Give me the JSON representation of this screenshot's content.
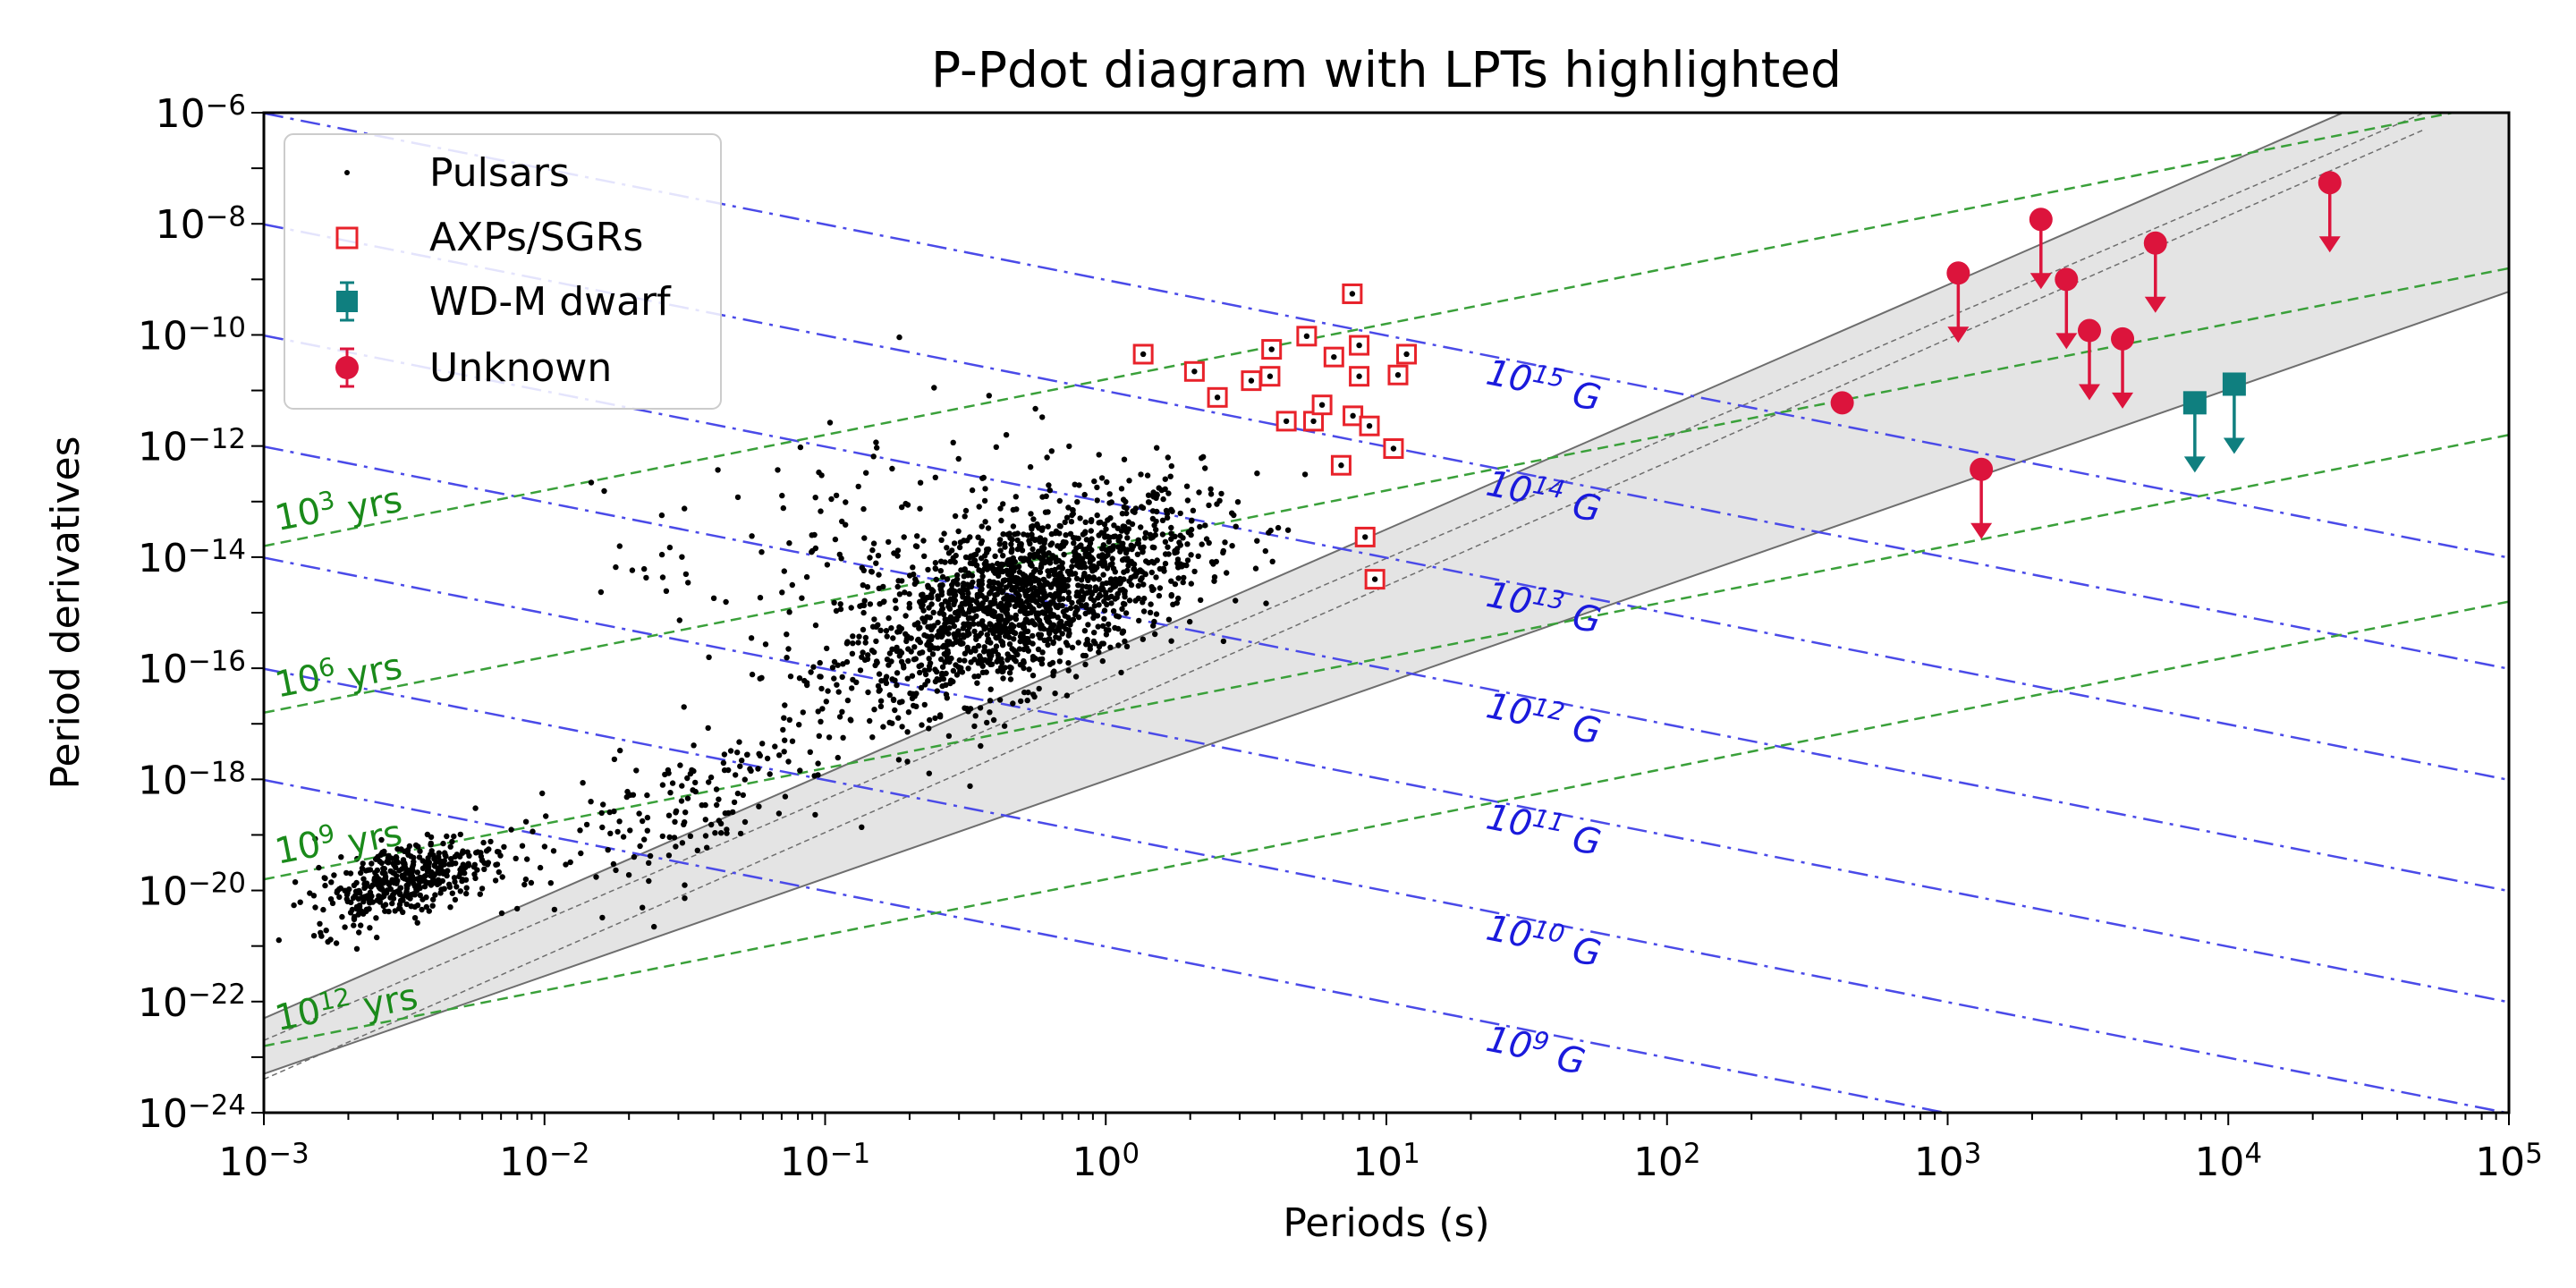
{
  "chart_data": {
    "type": "scatter",
    "title": "P-Pdot diagram with LPTs highlighted",
    "xlabel": "Periods (s)",
    "ylabel": "Period derivatives",
    "xscale": "log",
    "yscale": "log",
    "xlim": [
      0.001,
      100000
    ],
    "ylim": [
      1e-24,
      1e-06
    ],
    "x_ticks": [
      {
        "value": 0.001,
        "base": "10",
        "exp": "−3"
      },
      {
        "value": 0.01,
        "base": "10",
        "exp": "−2"
      },
      {
        "value": 0.1,
        "base": "10",
        "exp": "−1"
      },
      {
        "value": 1,
        "base": "10",
        "exp": "0"
      },
      {
        "value": 10,
        "base": "10",
        "exp": "1"
      },
      {
        "value": 100,
        "base": "10",
        "exp": "2"
      },
      {
        "value": 1000,
        "base": "10",
        "exp": "3"
      },
      {
        "value": 10000,
        "base": "10",
        "exp": "4"
      },
      {
        "value": 100000,
        "base": "10",
        "exp": "5"
      }
    ],
    "y_ticks": [
      {
        "value": 1e-24,
        "base": "10",
        "exp": "−24"
      },
      {
        "value": 1e-22,
        "base": "10",
        "exp": "−22"
      },
      {
        "value": 1e-20,
        "base": "10",
        "exp": "−20"
      },
      {
        "value": 1e-18,
        "base": "10",
        "exp": "−18"
      },
      {
        "value": 1e-16,
        "base": "10",
        "exp": "−16"
      },
      {
        "value": 1e-14,
        "base": "10",
        "exp": "−14"
      },
      {
        "value": 1e-12,
        "base": "10",
        "exp": "−12"
      },
      {
        "value": 1e-10,
        "base": "10",
        "exp": "−10"
      },
      {
        "value": 1e-08,
        "base": "10",
        "exp": "−8"
      },
      {
        "value": 1e-06,
        "base": "10",
        "exp": "−6"
      }
    ],
    "legend": {
      "placement": "top-left",
      "entries": [
        "Pulsars",
        "AXPs/SGRs",
        "WD-M dwarf",
        "Unknown"
      ]
    },
    "colors": {
      "pulsars": "#000000",
      "axp": "#e8222a",
      "wd": "#0f7f7f",
      "unknown": "#dc143c",
      "b_lines": "#4a4ae8",
      "b_text": "#1a1adc",
      "age_lines": "#3aa03a",
      "age_text": "#1a8a1a",
      "death_fill": "#e4e4e4",
      "death_line": "#6e6e6e"
    },
    "b_field_lines": [
      {
        "base": "10",
        "exp": "9",
        "unit": "G",
        "B": 1000000000.0
      },
      {
        "base": "10",
        "exp": "10",
        "unit": "G",
        "B": 10000000000.0
      },
      {
        "base": "10",
        "exp": "11",
        "unit": "G",
        "B": 100000000000.0
      },
      {
        "base": "10",
        "exp": "12",
        "unit": "G",
        "B": 1000000000000.0
      },
      {
        "base": "10",
        "exp": "13",
        "unit": "G",
        "B": 10000000000000.0
      },
      {
        "base": "10",
        "exp": "14",
        "unit": "G",
        "B": 100000000000000.0
      },
      {
        "base": "10",
        "exp": "15",
        "unit": "G",
        "B": 1000000000000000.0
      }
    ],
    "b_field_constant": 3.2e+19,
    "age_lines": [
      {
        "base": "10",
        "exp": "3",
        "unit": "yrs",
        "age_yr": 1000.0
      },
      {
        "base": "10",
        "exp": "6",
        "unit": "yrs",
        "age_yr": 1000000.0
      },
      {
        "base": "10",
        "exp": "9",
        "unit": "yrs",
        "age_yr": 1000000000.0
      },
      {
        "base": "10",
        "exp": "12",
        "unit": "yrs",
        "age_yr": 1000000000000.0
      }
    ],
    "death_region": {
      "lower": {
        "x": [
          0.001,
          100000
        ],
        "y": [
          5e-24,
          6e-10
        ]
      },
      "upper": {
        "x": [
          0.001,
          100000
        ],
        "y": [
          5e-23,
          2e-05
        ]
      },
      "dashed": [
        {
          "x": [
            0.001,
            50000
          ],
          "y": [
            2e-23,
            1e-06
          ]
        },
        {
          "x": [
            0.001,
            50000
          ],
          "y": [
            4e-24,
            5e-07
          ]
        }
      ]
    },
    "series": [
      {
        "name": "AXPs/SGRs",
        "marker": "open-square",
        "points": [
          {
            "x": 1.36,
            "y": 4.5e-11
          },
          {
            "x": 2.07,
            "y": 2.2e-11
          },
          {
            "x": 2.5,
            "y": 7.5e-12
          },
          {
            "x": 3.3,
            "y": 1.5e-11
          },
          {
            "x": 3.85,
            "y": 1.8e-11
          },
          {
            "x": 3.9,
            "y": 5.5e-11
          },
          {
            "x": 4.4,
            "y": 2.8e-12
          },
          {
            "x": 5.2,
            "y": 9.5e-11
          },
          {
            "x": 5.5,
            "y": 2.8e-12
          },
          {
            "x": 5.9,
            "y": 5.5e-12
          },
          {
            "x": 6.5,
            "y": 4e-11
          },
          {
            "x": 6.9,
            "y": 4.5e-13
          },
          {
            "x": 7.56,
            "y": 5.5e-10
          },
          {
            "x": 7.6,
            "y": 3.5e-12
          },
          {
            "x": 8.0,
            "y": 6.5e-11
          },
          {
            "x": 8.0,
            "y": 1.8e-11
          },
          {
            "x": 8.7,
            "y": 2.3e-12
          },
          {
            "x": 8.4,
            "y": 2.3e-14
          },
          {
            "x": 9.1,
            "y": 4e-15
          },
          {
            "x": 10.6,
            "y": 9e-13
          },
          {
            "x": 11.0,
            "y": 1.9e-11
          },
          {
            "x": 11.8,
            "y": 4.5e-11
          }
        ]
      },
      {
        "name": "WD-M dwarf",
        "marker": "filled-square-upper-limit",
        "points": [
          {
            "x": 7600,
            "y": 6e-12
          },
          {
            "x": 10500,
            "y": 1.3e-11
          }
        ]
      },
      {
        "name": "Unknown",
        "marker": "filled-circle-upper-limit",
        "points": [
          {
            "x": 421,
            "y": 6e-12
          },
          {
            "x": 1091,
            "y": 1.3e-09
          },
          {
            "x": 1318,
            "y": 3.8e-13
          },
          {
            "x": 2150,
            "y": 1.2e-08
          },
          {
            "x": 2650,
            "y": 1e-09
          },
          {
            "x": 3200,
            "y": 1.2e-10
          },
          {
            "x": 4200,
            "y": 8.5e-11
          },
          {
            "x": 5500,
            "y": 4.5e-09
          },
          {
            "x": 23000,
            "y": 5.5e-08
          }
        ]
      }
    ]
  }
}
